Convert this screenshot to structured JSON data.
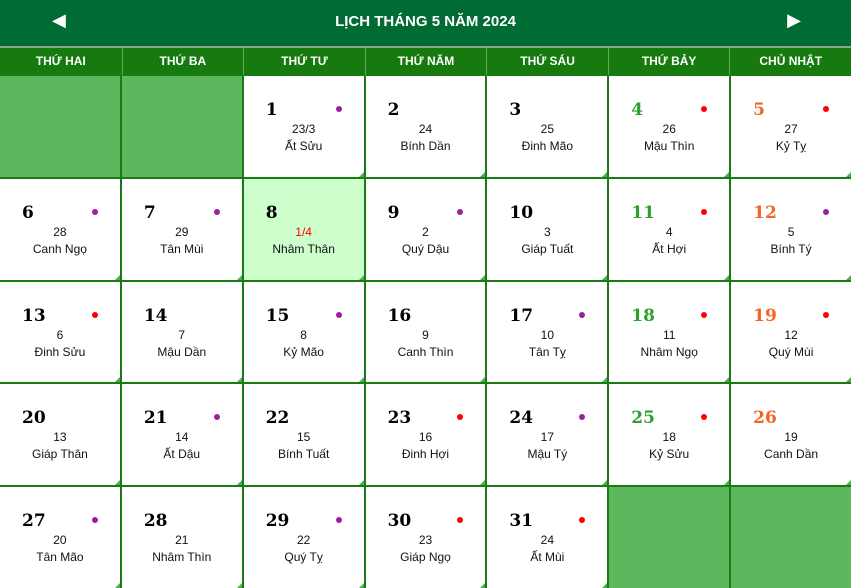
{
  "header": {
    "title": "LỊCH THÁNG 5 NĂM 2024",
    "prev_icon": "◀",
    "next_icon": "▶"
  },
  "weekdays": [
    "THỨ HAI",
    "THỨ BA",
    "THỨ TƯ",
    "THỨ NĂM",
    "THỨ SÁU",
    "THỨ BẢY",
    "CHỦ NHẬT"
  ],
  "colors": {
    "purple_dot": "#9b1fa0",
    "red_dot": "#ff0000",
    "saturday": "#2e9e2e",
    "sunday": "#f26522",
    "today_bg": "#ccffcc",
    "empty_bg": "#5cb85c"
  },
  "leading_empty": 2,
  "trailing_empty": 2,
  "today": 8,
  "days": [
    {
      "d": "1",
      "lunar": "23/3",
      "canchi": "Ất Sửu",
      "dot": "purple"
    },
    {
      "d": "2",
      "lunar": "24",
      "canchi": "Bính Dần",
      "dot": ""
    },
    {
      "d": "3",
      "lunar": "25",
      "canchi": "Đinh Mão",
      "dot": ""
    },
    {
      "d": "4",
      "lunar": "26",
      "canchi": "Mậu Thìn",
      "dot": "red"
    },
    {
      "d": "5",
      "lunar": "27",
      "canchi": "Kỷ Tỵ",
      "dot": "red"
    },
    {
      "d": "6",
      "lunar": "28",
      "canchi": "Canh Ngọ",
      "dot": "purple"
    },
    {
      "d": "7",
      "lunar": "29",
      "canchi": "Tân Mùi",
      "dot": "purple"
    },
    {
      "d": "8",
      "lunar": "1/4",
      "canchi": "Nhâm Thân",
      "dot": ""
    },
    {
      "d": "9",
      "lunar": "2",
      "canchi": "Quý Dậu",
      "dot": "purple"
    },
    {
      "d": "10",
      "lunar": "3",
      "canchi": "Giáp Tuất",
      "dot": ""
    },
    {
      "d": "11",
      "lunar": "4",
      "canchi": "Ất Hợi",
      "dot": "red"
    },
    {
      "d": "12",
      "lunar": "5",
      "canchi": "Bính Tý",
      "dot": "purple"
    },
    {
      "d": "13",
      "lunar": "6",
      "canchi": "Đinh Sửu",
      "dot": "red"
    },
    {
      "d": "14",
      "lunar": "7",
      "canchi": "Mậu Dần",
      "dot": ""
    },
    {
      "d": "15",
      "lunar": "8",
      "canchi": "Kỷ Mão",
      "dot": "purple"
    },
    {
      "d": "16",
      "lunar": "9",
      "canchi": "Canh Thìn",
      "dot": ""
    },
    {
      "d": "17",
      "lunar": "10",
      "canchi": "Tân Tỵ",
      "dot": "purple"
    },
    {
      "d": "18",
      "lunar": "11",
      "canchi": "Nhâm Ngọ",
      "dot": "red"
    },
    {
      "d": "19",
      "lunar": "12",
      "canchi": "Quý Mùi",
      "dot": "red"
    },
    {
      "d": "20",
      "lunar": "13",
      "canchi": "Giáp Thân",
      "dot": ""
    },
    {
      "d": "21",
      "lunar": "14",
      "canchi": "Ất Dậu",
      "dot": "purple"
    },
    {
      "d": "22",
      "lunar": "15",
      "canchi": "Bính Tuất",
      "dot": ""
    },
    {
      "d": "23",
      "lunar": "16",
      "canchi": "Đinh Hợi",
      "dot": "red"
    },
    {
      "d": "24",
      "lunar": "17",
      "canchi": "Mậu Tý",
      "dot": "purple"
    },
    {
      "d": "25",
      "lunar": "18",
      "canchi": "Kỷ Sửu",
      "dot": "red"
    },
    {
      "d": "26",
      "lunar": "19",
      "canchi": "Canh Dần",
      "dot": ""
    },
    {
      "d": "27",
      "lunar": "20",
      "canchi": "Tân Mão",
      "dot": "purple"
    },
    {
      "d": "28",
      "lunar": "21",
      "canchi": "Nhâm Thìn",
      "dot": ""
    },
    {
      "d": "29",
      "lunar": "22",
      "canchi": "Quý Tỵ",
      "dot": "purple"
    },
    {
      "d": "30",
      "lunar": "23",
      "canchi": "Giáp Ngọ",
      "dot": "red"
    },
    {
      "d": "31",
      "lunar": "24",
      "canchi": "Ất Mùi",
      "dot": "red"
    }
  ]
}
